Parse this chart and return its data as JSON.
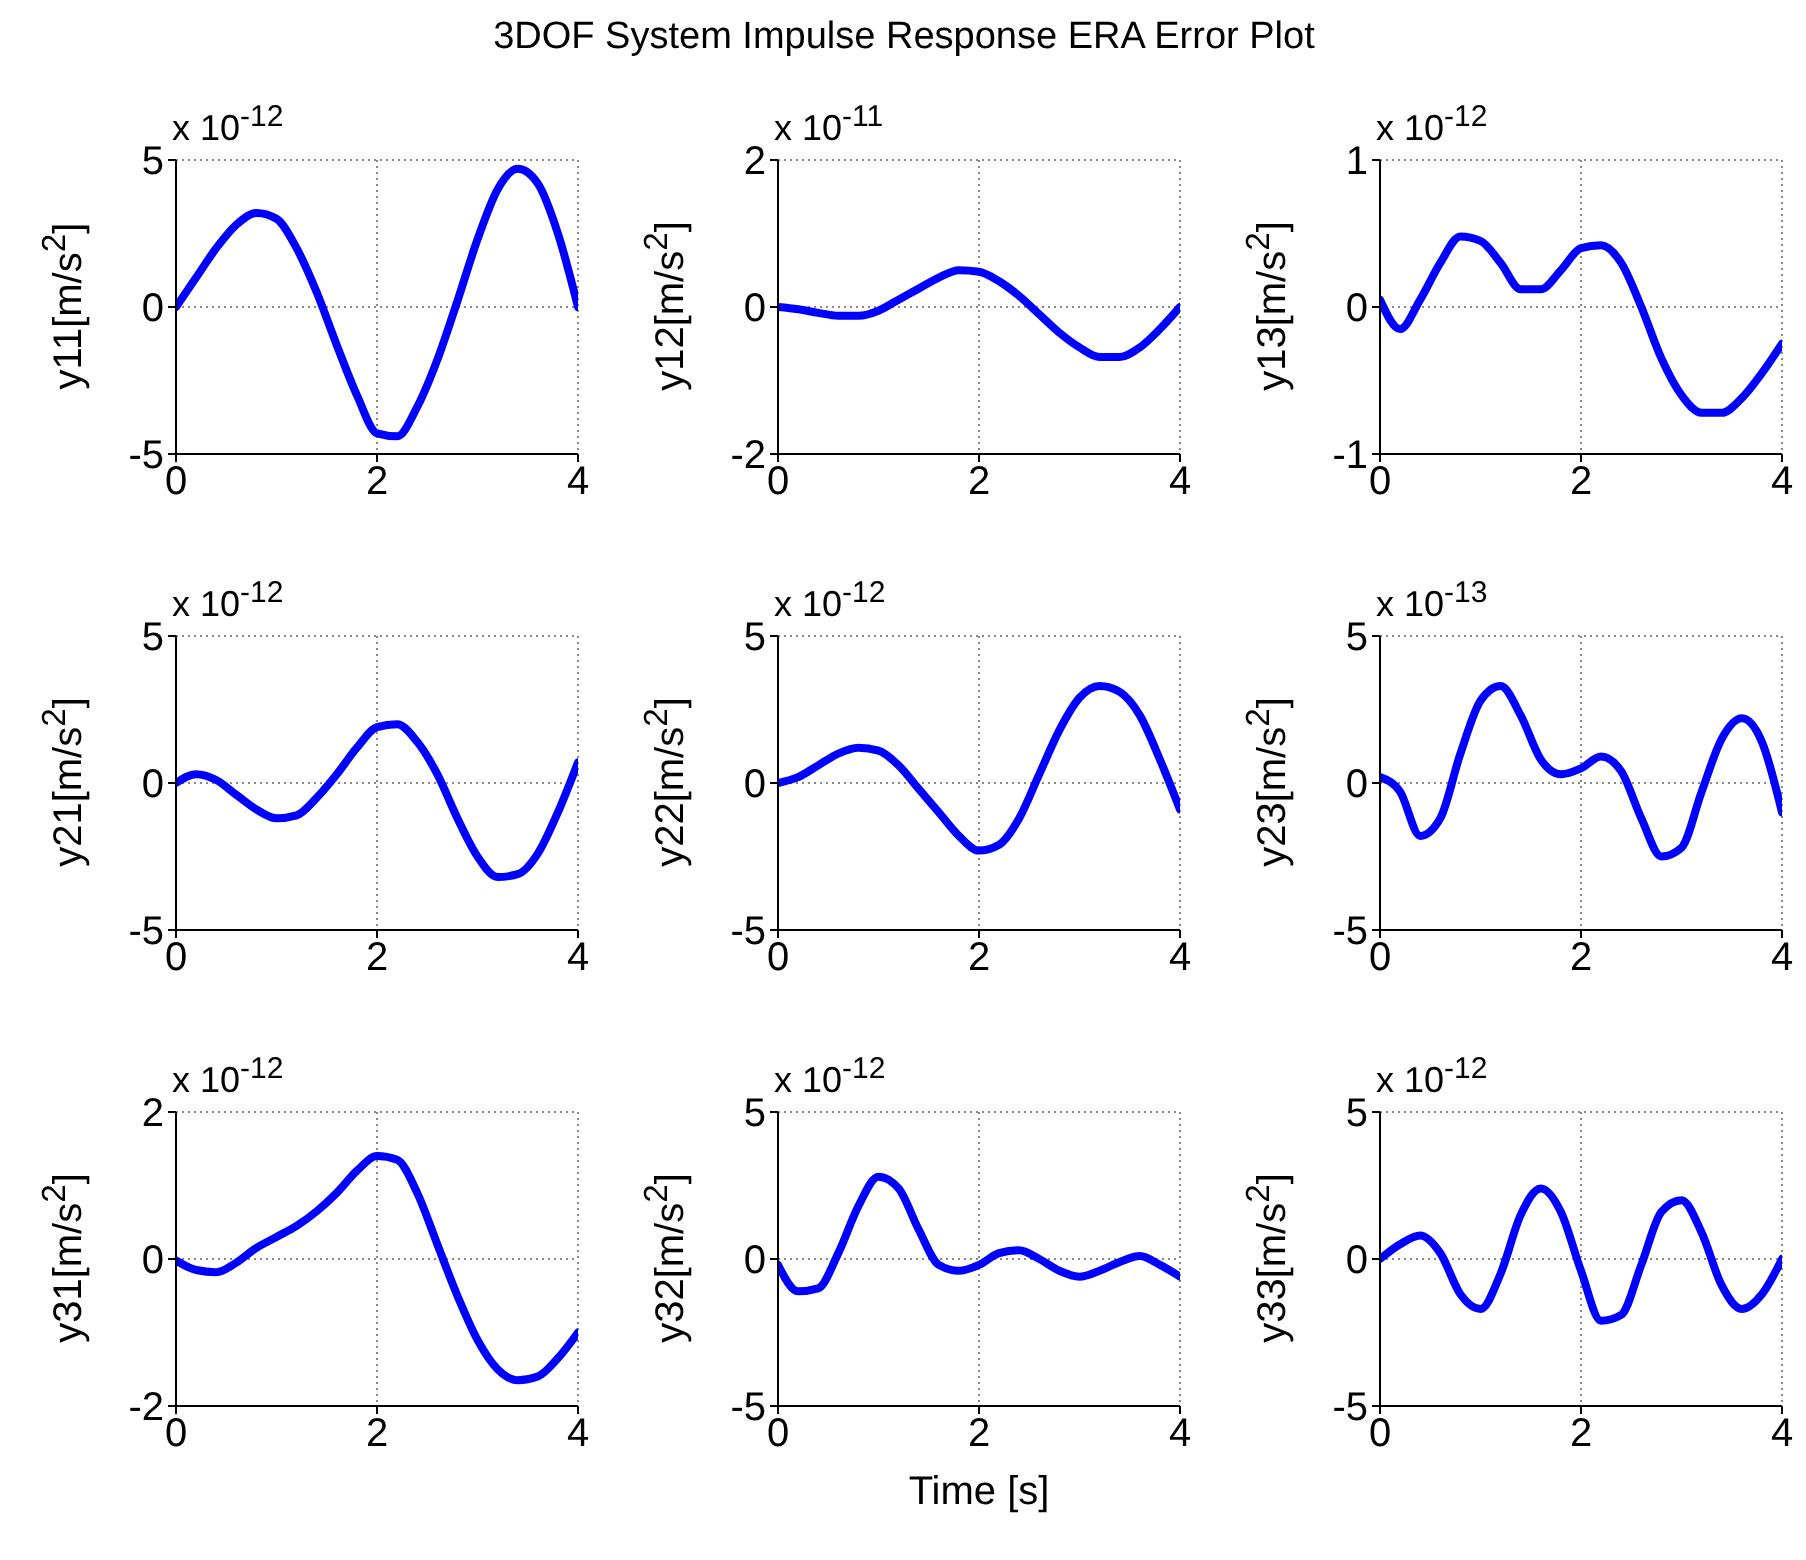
{
  "chart_data": [
    {
      "type": "line",
      "ylabel": "y11[m/s$^{2}$]",
      "annotations": [
        "x 10$^{-12}$"
      ],
      "x": [
        0,
        0.2,
        0.4,
        0.6,
        0.8,
        1,
        1.2,
        1.4,
        1.6,
        1.8,
        2,
        2.2,
        2.4,
        2.6,
        2.8,
        3,
        3.2,
        3.4,
        3.6,
        3.8,
        4
      ],
      "xlim": [
        0,
        4
      ],
      "xticks": [
        0,
        2,
        4
      ],
      "ylim": [
        -5,
        5
      ],
      "yticks": [
        -5,
        0,
        5
      ],
      "grid": true,
      "series": [
        {
          "color": "#0000ff",
          "values": [
            0,
            1.0,
            2.0,
            2.8,
            3.2,
            3.0,
            2.0,
            0.5,
            -1.3,
            -3.0,
            -4.3,
            -4.4,
            -3.4,
            -1.8,
            0.2,
            2.3,
            4.0,
            4.7,
            4.2,
            2.5,
            0
          ]
        }
      ]
    },
    {
      "type": "line",
      "title": "3DOF System Impulse Response ERA Error Plot",
      "ylabel": "y12[m/s$^{2}$]",
      "annotations": [
        "x 10$^{-11}$"
      ],
      "x": [
        0,
        0.2,
        0.4,
        0.6,
        0.8,
        1,
        1.2,
        1.4,
        1.6,
        1.8,
        2,
        2.2,
        2.4,
        2.6,
        2.8,
        3,
        3.2,
        3.4,
        3.6,
        3.8,
        4
      ],
      "xlim": [
        0,
        4
      ],
      "xticks": [
        0,
        2,
        4
      ],
      "ylim": [
        -2,
        2
      ],
      "yticks": [
        -2,
        0,
        2
      ],
      "grid": true,
      "series": [
        {
          "color": "#0000ff",
          "values": [
            0,
            -0.03,
            -0.08,
            -0.12,
            -0.12,
            -0.05,
            0.1,
            0.25,
            0.4,
            0.5,
            0.48,
            0.35,
            0.15,
            -0.1,
            -0.35,
            -0.55,
            -0.68,
            -0.68,
            -0.55,
            -0.3,
            0
          ]
        }
      ]
    },
    {
      "type": "line",
      "ylabel": "y13[m/s$^{2}$]",
      "annotations": [
        "x 10$^{-12}$"
      ],
      "x": [
        0,
        0.2,
        0.4,
        0.6,
        0.8,
        1,
        1.2,
        1.4,
        1.6,
        1.8,
        2,
        2.2,
        2.4,
        2.6,
        2.8,
        3,
        3.2,
        3.4,
        3.6,
        3.8,
        4
      ],
      "xlim": [
        0,
        4
      ],
      "xticks": [
        0,
        2,
        4
      ],
      "ylim": [
        -1,
        1
      ],
      "yticks": [
        -1,
        0,
        1
      ],
      "grid": true,
      "series": [
        {
          "color": "#0000ff",
          "values": [
            0.05,
            -0.15,
            0.05,
            0.3,
            0.48,
            0.45,
            0.3,
            0.12,
            0.12,
            0.25,
            0.4,
            0.42,
            0.3,
            0.0,
            -0.35,
            -0.6,
            -0.72,
            -0.72,
            -0.62,
            -0.45,
            -0.25
          ]
        }
      ]
    },
    {
      "type": "line",
      "ylabel": "y21[m/s$^{2}$]",
      "annotations": [
        "x 10$^{-12}$"
      ],
      "x": [
        0,
        0.2,
        0.4,
        0.6,
        0.8,
        1,
        1.2,
        1.4,
        1.6,
        1.8,
        2,
        2.2,
        2.4,
        2.6,
        2.8,
        3,
        3.2,
        3.4,
        3.6,
        3.8,
        4
      ],
      "xlim": [
        0,
        4
      ],
      "xticks": [
        0,
        2,
        4
      ],
      "ylim": [
        -5,
        5
      ],
      "yticks": [
        -5,
        0,
        5
      ],
      "grid": true,
      "series": [
        {
          "color": "#0000ff",
          "values": [
            0,
            0.3,
            0.1,
            -0.4,
            -0.9,
            -1.2,
            -1.1,
            -0.5,
            0.3,
            1.2,
            1.9,
            2.0,
            1.4,
            0.3,
            -1.2,
            -2.5,
            -3.2,
            -3.1,
            -2.4,
            -1.0,
            0.7
          ]
        }
      ]
    },
    {
      "type": "line",
      "ylabel": "y22[m/s$^{2}$]",
      "annotations": [
        "x 10$^{-12}$"
      ],
      "x": [
        0,
        0.2,
        0.4,
        0.6,
        0.8,
        1,
        1.2,
        1.4,
        1.6,
        1.8,
        2,
        2.2,
        2.4,
        2.6,
        2.8,
        3,
        3.2,
        3.4,
        3.6,
        3.8,
        4
      ],
      "xlim": [
        0,
        4
      ],
      "xticks": [
        0,
        2,
        4
      ],
      "ylim": [
        -5,
        5
      ],
      "yticks": [
        -5,
        0,
        5
      ],
      "grid": true,
      "series": [
        {
          "color": "#0000ff",
          "values": [
            0,
            0.2,
            0.6,
            1.0,
            1.2,
            1.1,
            0.6,
            -0.2,
            -1.0,
            -1.8,
            -2.3,
            -2.1,
            -1.2,
            0.3,
            1.8,
            2.9,
            3.3,
            3.1,
            2.3,
            0.8,
            -0.9
          ]
        }
      ]
    },
    {
      "type": "line",
      "ylabel": "y23[m/s$^{2}$]",
      "annotations": [
        "x 10$^{-13}$"
      ],
      "x": [
        0,
        0.2,
        0.4,
        0.6,
        0.8,
        1,
        1.2,
        1.4,
        1.6,
        1.8,
        2,
        2.2,
        2.4,
        2.6,
        2.8,
        3,
        3.2,
        3.4,
        3.6,
        3.8,
        4
      ],
      "xlim": [
        0,
        4
      ],
      "xticks": [
        0,
        2,
        4
      ],
      "ylim": [
        -5,
        5
      ],
      "yticks": [
        -5,
        0,
        5
      ],
      "grid": true,
      "series": [
        {
          "color": "#0000ff",
          "values": [
            0.2,
            -0.3,
            -1.8,
            -1.2,
            1.0,
            2.8,
            3.3,
            2.3,
            0.8,
            0.3,
            0.5,
            0.9,
            0.4,
            -1.2,
            -2.5,
            -2.2,
            -0.3,
            1.5,
            2.2,
            1.4,
            -1.0
          ]
        }
      ]
    },
    {
      "type": "line",
      "ylabel": "y31[m/s$^{2}$]",
      "annotations": [
        "x 10$^{-12}$"
      ],
      "x": [
        0,
        0.2,
        0.4,
        0.6,
        0.8,
        1,
        1.2,
        1.4,
        1.6,
        1.8,
        2,
        2.2,
        2.4,
        2.6,
        2.8,
        3,
        3.2,
        3.4,
        3.6,
        3.8,
        4
      ],
      "xlim": [
        0,
        4
      ],
      "xticks": [
        0,
        2,
        4
      ],
      "ylim": [
        -2,
        2
      ],
      "yticks": [
        -2,
        0,
        2
      ],
      "grid": true,
      "series": [
        {
          "color": "#0000ff",
          "values": [
            -0.02,
            -0.15,
            -0.18,
            -0.05,
            0.15,
            0.3,
            0.45,
            0.65,
            0.9,
            1.2,
            1.4,
            1.35,
            0.9,
            0.2,
            -0.5,
            -1.1,
            -1.5,
            -1.65,
            -1.6,
            -1.35,
            -1.0
          ]
        }
      ]
    },
    {
      "type": "line",
      "xlabel": "Time [s]",
      "ylabel": "y32[m/s$^{2}$]",
      "annotations": [
        "x 10$^{-12}$"
      ],
      "x": [
        0,
        0.2,
        0.4,
        0.6,
        0.8,
        1,
        1.2,
        1.4,
        1.6,
        1.8,
        2,
        2.2,
        2.4,
        2.6,
        2.8,
        3,
        3.2,
        3.4,
        3.6,
        3.8,
        4
      ],
      "xlim": [
        0,
        4
      ],
      "xticks": [
        0,
        2,
        4
      ],
      "ylim": [
        -5,
        5
      ],
      "yticks": [
        -5,
        0,
        5
      ],
      "grid": true,
      "series": [
        {
          "color": "#0000ff",
          "values": [
            -0.2,
            -1.1,
            -1.0,
            0.2,
            1.8,
            2.8,
            2.4,
            1.0,
            -0.2,
            -0.4,
            -0.2,
            0.2,
            0.3,
            0.0,
            -0.4,
            -0.6,
            -0.4,
            -0.1,
            0.1,
            -0.2,
            -0.6
          ]
        }
      ]
    },
    {
      "type": "line",
      "ylabel": "y33[m/s$^{2}$]",
      "annotations": [
        "x 10$^{-12}$"
      ],
      "x": [
        0,
        0.2,
        0.4,
        0.6,
        0.8,
        1,
        1.2,
        1.4,
        1.6,
        1.8,
        2,
        2.2,
        2.4,
        2.6,
        2.8,
        3,
        3.2,
        3.4,
        3.6,
        3.8,
        4
      ],
      "xlim": [
        0,
        4
      ],
      "xticks": [
        0,
        2,
        4
      ],
      "ylim": [
        -5,
        5
      ],
      "yticks": [
        -5,
        0,
        5
      ],
      "grid": true,
      "series": [
        {
          "color": "#0000ff",
          "values": [
            0,
            0.5,
            0.8,
            0.2,
            -1.2,
            -1.7,
            -0.5,
            1.5,
            2.4,
            1.6,
            -0.4,
            -2.1,
            -1.9,
            -0.2,
            1.6,
            2.0,
            0.9,
            -0.9,
            -1.7,
            -1.2,
            0
          ]
        }
      ]
    }
  ]
}
